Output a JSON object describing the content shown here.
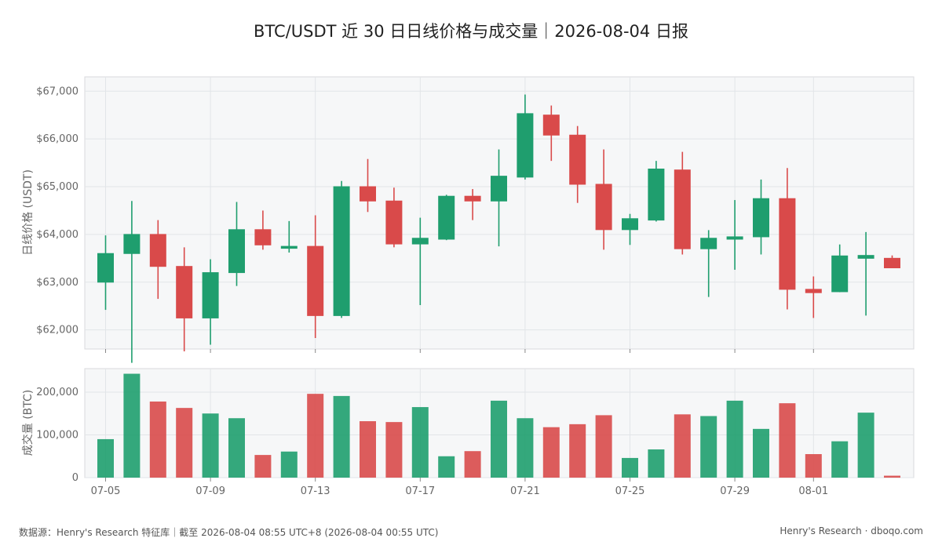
{
  "title": "BTC/USDT 近 30 日日线价格与成交量｜2026-08-04 日报",
  "footer": {
    "source": "数据源：Henry's Research 特征库｜截至 2026-08-04 08:55 UTC+8 (2026-08-04 00:55 UTC)",
    "brand": "Henry's Research · dboqo.com"
  },
  "colors": {
    "up": "#1f9e6e",
    "down": "#d94a4a",
    "grid": "#e2e5e8",
    "panel_bg": "#f6f7f8",
    "frame": "#d8dadd"
  },
  "chart_data": [
    {
      "type": "candlestick",
      "ylabel": "日线价格 (USDT)",
      "ylim": [
        61600,
        67300
      ],
      "yticks": [
        62000,
        63000,
        64000,
        65000,
        66000,
        67000
      ],
      "ytick_labels": [
        "$62,000",
        "$63,000",
        "$64,000",
        "$65,000",
        "$66,000",
        "$67,000"
      ],
      "dates": [
        "07-05",
        "07-06",
        "07-07",
        "07-08",
        "07-09",
        "07-10",
        "07-11",
        "07-12",
        "07-13",
        "07-14",
        "07-15",
        "07-16",
        "07-17",
        "07-18",
        "07-19",
        "07-20",
        "07-21",
        "07-22",
        "07-23",
        "07-24",
        "07-25",
        "07-26",
        "07-27",
        "07-28",
        "07-29",
        "07-30",
        "07-31",
        "08-01",
        "08-02",
        "08-03",
        "08-04"
      ],
      "open": [
        63000,
        63600,
        64000,
        63330,
        62250,
        63200,
        64100,
        63750,
        63750,
        62300,
        65000,
        64700,
        63800,
        63900,
        64800,
        64700,
        65200,
        66500,
        66080,
        65050,
        64100,
        64300,
        65350,
        63700,
        63900,
        63950,
        64750,
        62850,
        62800,
        63500,
        63500
      ],
      "close": [
        63600,
        64000,
        63330,
        62250,
        63200,
        64100,
        63780,
        63750,
        62300,
        65000,
        64700,
        63800,
        63920,
        64800,
        64700,
        65220,
        66530,
        66080,
        65050,
        64100,
        64330,
        65370,
        63700,
        63920,
        63950,
        64750,
        62850,
        62780,
        63550,
        63560,
        63300
      ],
      "high": [
        63980,
        64700,
        64300,
        63730,
        63480,
        64680,
        64500,
        64280,
        64400,
        65120,
        65580,
        64980,
        64350,
        64830,
        64950,
        65780,
        66930,
        66700,
        66270,
        65780,
        64430,
        65540,
        65730,
        64090,
        64720,
        65150,
        65390,
        63120,
        63790,
        64050,
        63560
      ],
      "low": [
        62420,
        61310,
        62650,
        61550,
        61690,
        62920,
        63680,
        63620,
        61830,
        62250,
        64470,
        63730,
        62520,
        63880,
        64300,
        63750,
        65150,
        65540,
        64660,
        63680,
        63780,
        64270,
        63580,
        62690,
        63260,
        63580,
        62430,
        62250,
        62790,
        62300,
        63300
      ],
      "xtick_labels": [
        "07-05",
        "07-09",
        "07-13",
        "07-17",
        "07-21",
        "07-25",
        "07-29",
        "08-01"
      ]
    },
    {
      "type": "bar",
      "ylabel": "成交量 (BTC)",
      "ylim": [
        0,
        255000
      ],
      "yticks": [
        0,
        100000,
        200000
      ],
      "ytick_labels": [
        "0",
        "100,000",
        "200,000"
      ],
      "values": [
        90000,
        243000,
        178000,
        163000,
        150000,
        139000,
        53000,
        61000,
        196000,
        191000,
        132000,
        130000,
        165000,
        50000,
        62000,
        180000,
        139000,
        118000,
        125000,
        146000,
        46000,
        66000,
        148000,
        144000,
        180000,
        114000,
        174000,
        55000,
        85000,
        152000,
        4500
      ]
    }
  ]
}
